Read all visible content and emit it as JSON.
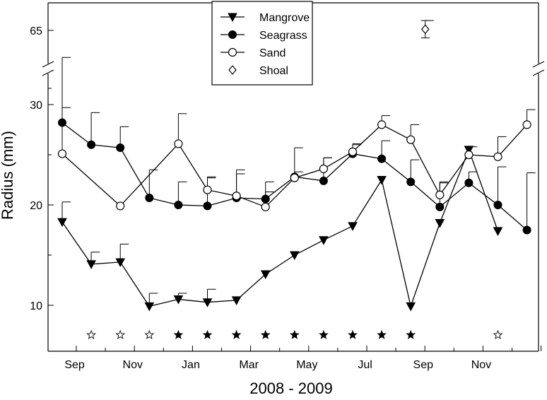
{
  "chart_data": {
    "type": "line",
    "title": "",
    "xlabel": "2008 - 2009",
    "ylabel": "Radius (mm)",
    "x_ticks": [
      "Sep",
      "Nov",
      "Jan",
      "Mar",
      "May",
      "Jul",
      "Sep",
      "Nov"
    ],
    "y_ticks": [
      "10",
      "20",
      "30",
      "65"
    ],
    "y_axis_break": true,
    "legend_position": "top-center",
    "series": [
      {
        "name": "Mangrove",
        "marker": "filled-down-triangle",
        "points": [
          {
            "x": 0,
            "y": 18.3,
            "err": 2.0
          },
          {
            "x": 1,
            "y": 14.1,
            "err": 1.2
          },
          {
            "x": 2,
            "y": 14.3,
            "err": 1.8
          },
          {
            "x": 3,
            "y": 9.9,
            "err": 1.3
          },
          {
            "x": 4,
            "y": 10.6,
            "err": 0.6
          },
          {
            "x": 5,
            "y": 10.3,
            "err": 1.3
          },
          {
            "x": 6,
            "y": 10.5,
            "err": null
          },
          {
            "x": 7,
            "y": 13.1,
            "err": null
          },
          {
            "x": 8,
            "y": 15.0,
            "err": null
          },
          {
            "x": 9,
            "y": 16.5,
            "err": null
          },
          {
            "x": 10,
            "y": 17.9,
            "err": null
          },
          {
            "x": 11,
            "y": 22.5,
            "err": null
          },
          {
            "x": 12,
            "y": 9.9,
            "err": null
          },
          {
            "x": 13,
            "y": 18.2,
            "err": null
          },
          {
            "x": 14,
            "y": 25.5,
            "err": null
          },
          {
            "x": 15,
            "y": 17.4,
            "err": null
          }
        ]
      },
      {
        "name": "Seagrass",
        "marker": "filled-circle",
        "points": [
          {
            "x": 0,
            "y": 28.2,
            "err": 6.5
          },
          {
            "x": 1,
            "y": 26.0,
            "err": 3.2
          },
          {
            "x": 2,
            "y": 25.7,
            "err": 2.1
          },
          {
            "x": 3,
            "y": 20.7,
            "err": 2.8
          },
          {
            "x": 4,
            "y": 20.0,
            "err": 2.3
          },
          {
            "x": 5,
            "y": 19.9,
            "err": 2.9
          },
          {
            "x": 6,
            "y": 20.7,
            "err": 2.8
          },
          {
            "x": 7,
            "y": 20.6,
            "err": 1.7
          },
          {
            "x": 8,
            "y": 22.8,
            "err": 2.9
          },
          {
            "x": 9,
            "y": 22.4,
            "err": 2.3
          },
          {
            "x": 10,
            "y": 25.1,
            "err": 1.0
          },
          {
            "x": 11,
            "y": 24.6,
            "err": 1.8
          },
          {
            "x": 12,
            "y": 22.3,
            "err": 2.2
          },
          {
            "x": 13,
            "y": 19.8,
            "err": 2.4
          },
          {
            "x": 14,
            "y": 22.2,
            "err": 1.1
          },
          {
            "x": 15,
            "y": 20.0,
            "err": 3.8
          },
          {
            "x": 16,
            "y": 17.5,
            "err": 5.7
          }
        ]
      },
      {
        "name": "Sand",
        "marker": "open-circle",
        "points": [
          {
            "x": 0,
            "y": 25.1,
            "err": 4.6
          },
          {
            "x": 2,
            "y": 19.9,
            "err": null
          },
          {
            "x": 4,
            "y": 26.1,
            "err": 3.0
          },
          {
            "x": 5,
            "y": 21.5,
            "err": 1.2
          },
          {
            "x": 6,
            "y": 20.9,
            "err": 2.2
          },
          {
            "x": 7,
            "y": 19.8,
            "err": 1.5
          },
          {
            "x": 8,
            "y": 22.7,
            "err": 0.6
          },
          {
            "x": 9,
            "y": 23.6,
            "err": 1.1
          },
          {
            "x": 10,
            "y": 25.3,
            "err": 0.7
          },
          {
            "x": 11,
            "y": 28.0,
            "err": 0.9
          },
          {
            "x": 12,
            "y": 26.5,
            "err": 1.5
          },
          {
            "x": 13,
            "y": 21.0,
            "err": 1.3
          },
          {
            "x": 14,
            "y": 25.0,
            "err": 0.8
          },
          {
            "x": 15,
            "y": 24.8,
            "err": 2.0
          },
          {
            "x": 16,
            "y": 28.0,
            "err": 1.5
          }
        ]
      },
      {
        "name": "Shoal",
        "marker": "open-diamond",
        "points": [
          {
            "x": 12.5,
            "y": 65.2,
            "err": 1.5
          }
        ]
      }
    ],
    "stars": [
      {
        "x": 1,
        "filled": false
      },
      {
        "x": 2,
        "filled": false
      },
      {
        "x": 3,
        "filled": false
      },
      {
        "x": 4,
        "filled": true
      },
      {
        "x": 5,
        "filled": true
      },
      {
        "x": 6,
        "filled": true
      },
      {
        "x": 7,
        "filled": true
      },
      {
        "x": 8,
        "filled": true
      },
      {
        "x": 9,
        "filled": true
      },
      {
        "x": 10,
        "filled": true
      },
      {
        "x": 11,
        "filled": true
      },
      {
        "x": 12,
        "filled": true
      },
      {
        "x": 15,
        "filled": false
      }
    ]
  }
}
